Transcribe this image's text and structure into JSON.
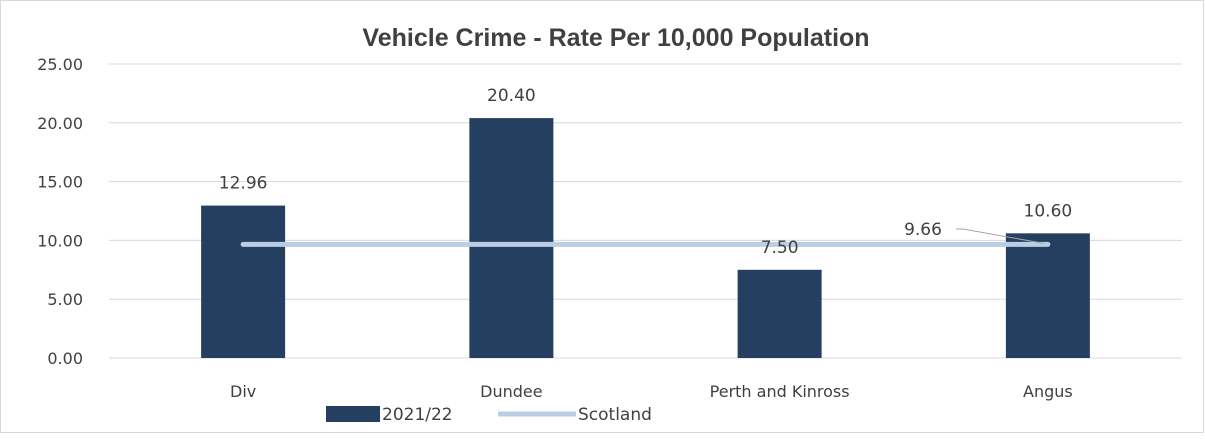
{
  "chart_data": {
    "type": "bar",
    "title": "Vehicle Crime - Rate Per 10,000 Population",
    "categories": [
      "Div",
      "Dundee",
      "Perth and Kinross",
      "Angus"
    ],
    "series": [
      {
        "name": "2021/22",
        "type": "bar",
        "values": [
          12.96,
          20.4,
          7.5,
          10.6
        ],
        "labels": [
          "12.96",
          "20.40",
          "7.50",
          "10.60"
        ],
        "color": "#243F60"
      },
      {
        "name": "Scotland",
        "type": "line",
        "values": [
          9.66,
          9.66,
          9.66,
          9.66
        ],
        "labels": [
          "",
          "",
          "",
          "9.66"
        ],
        "color": "#B9CDE5"
      }
    ],
    "ylim": [
      0,
      25
    ],
    "yticks": [
      "0.00",
      "5.00",
      "10.00",
      "15.00",
      "20.00",
      "25.00"
    ],
    "grid": true,
    "legend_position": "bottom"
  }
}
